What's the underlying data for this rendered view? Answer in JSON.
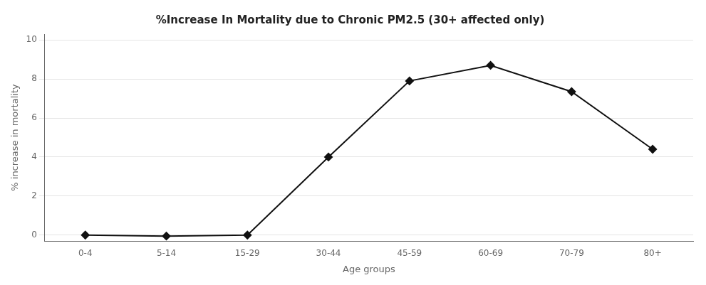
{
  "chart_data": {
    "type": "line",
    "title": "%Increase In Mortality due to Chronic PM2.5 (30+ affected only)",
    "xlabel": "Age groups",
    "ylabel": "% increase in mortality",
    "categories": [
      "0-4",
      "5-14",
      "15-29",
      "30-44",
      "45-59",
      "60-69",
      "70-79",
      "80+"
    ],
    "values": [
      0.0,
      -0.05,
      0.0,
      4.0,
      7.9,
      8.7,
      7.35,
      4.4
    ],
    "color": "#111111",
    "marker": "diamond",
    "line_style": "solid",
    "ylim": [
      -0.3,
      10.3
    ],
    "yticks": [
      0,
      2,
      4,
      6,
      8,
      10
    ],
    "grid": true
  }
}
